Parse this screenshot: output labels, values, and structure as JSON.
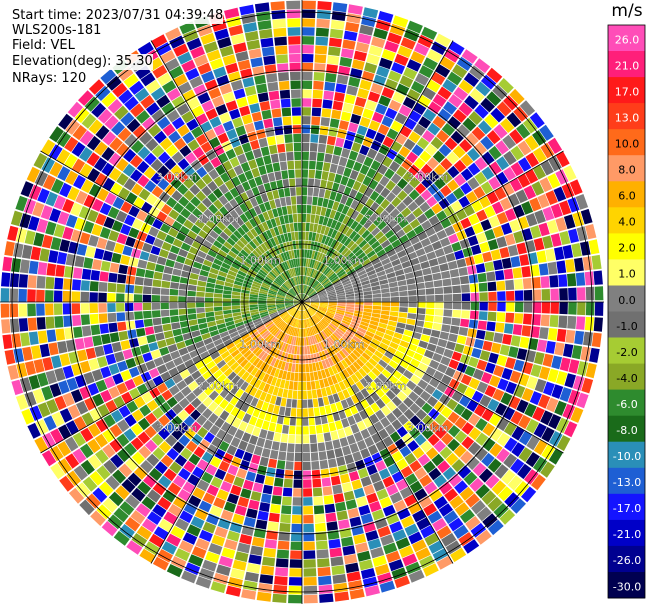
{
  "header": {
    "start_time": "Start time: 2023/07/31 04:39:48",
    "instrument": "WLS200s-181",
    "field": "Field: VEL",
    "elevation": "Elevation(deg): 35.30",
    "nrays": "NRays: 120"
  },
  "colorbar": {
    "unit": "m/s",
    "ticks": [
      "26.0",
      "21.0",
      "17.0",
      "13.0",
      "10.0",
      "8.0",
      "6.0",
      "4.0",
      "2.0",
      "1.0",
      "0.0",
      "-1.0",
      "-2.0",
      "-4.0",
      "-6.0",
      "-8.0",
      "-10.0",
      "-13.0",
      "-17.0",
      "-21.0",
      "-26.0",
      "-30.0"
    ],
    "colors": [
      "#ff4db8",
      "#ff1f7a",
      "#ff1a1a",
      "#ff3d1a",
      "#ff6a1a",
      "#ff9a66",
      "#ffb000",
      "#ffd400",
      "#ffff00",
      "#ffff66",
      "#808080",
      "#707070",
      "#a6cc33",
      "#8aa826",
      "#2e8b2e",
      "#1a6b1a",
      "#2a8fb8",
      "#1e5fd4",
      "#1414ff",
      "#0000c8",
      "#000090",
      "#000050"
    ]
  },
  "chart_data": {
    "type": "ppi",
    "field": "VEL",
    "units": "m/s",
    "nrays": 120,
    "ring_labels": [
      "1.00km",
      "2.00km",
      "3.00km"
    ],
    "velocity_pattern": {
      "near_range_km": [
        0,
        2.3
      ],
      "toward_sector_az_deg": [
        250,
        60
      ],
      "away_sector_az_deg": [
        90,
        240
      ],
      "toward_range_ms": [
        -6,
        -1
      ],
      "away_range_ms": [
        1,
        10
      ],
      "noise_beyond_km": 2.6
    }
  }
}
